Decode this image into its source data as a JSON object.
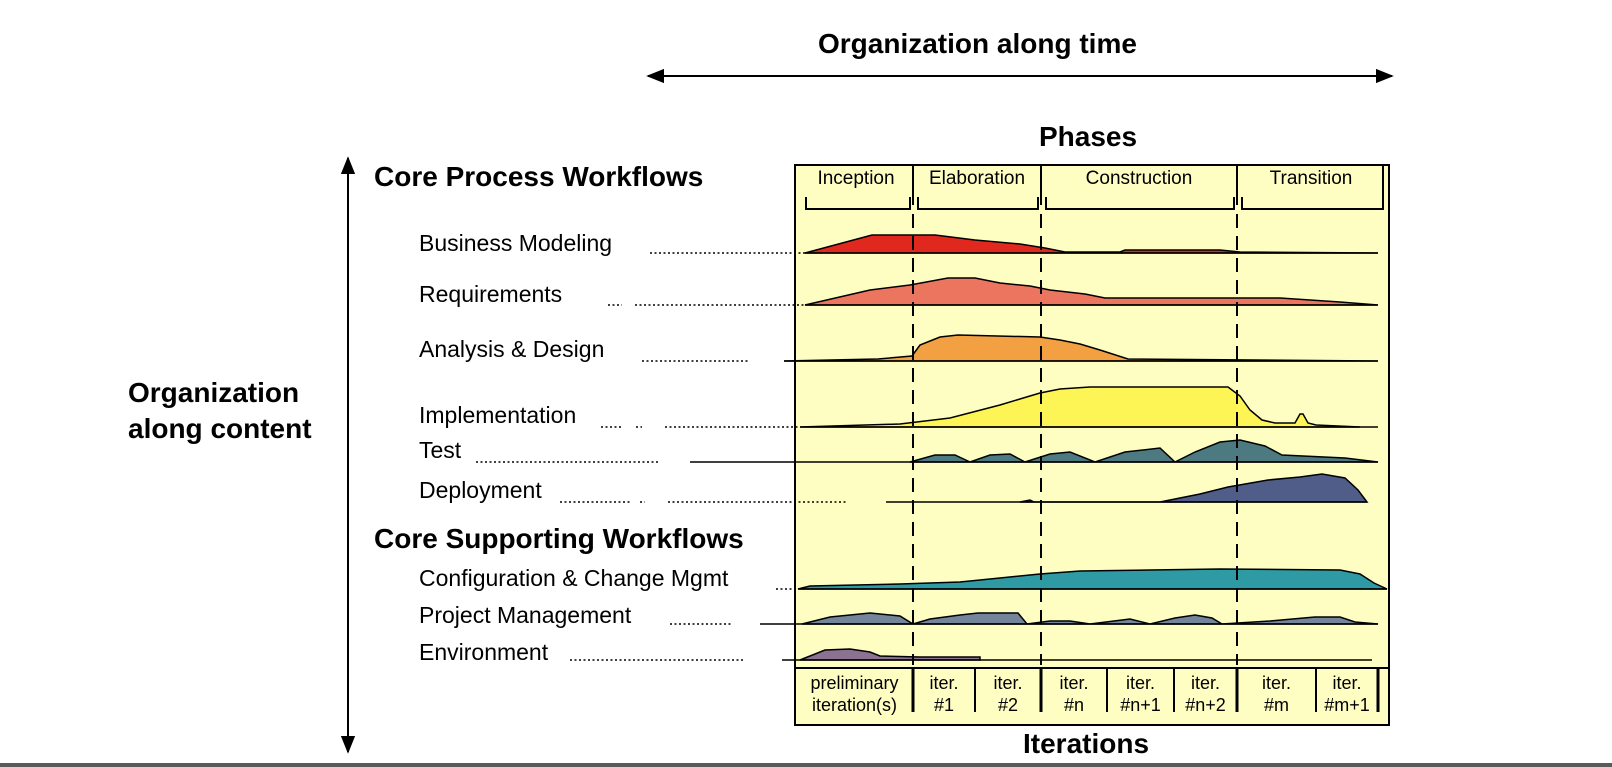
{
  "title_time": "Organization along time",
  "title_content": "Organization along content",
  "title_content_lines": [
    "Organization",
    "along content"
  ],
  "phases_title": "Phases",
  "iterations_title": "Iterations",
  "core_process_title": "Core Process Workflows",
  "core_supporting_title": "Core Supporting Workflows",
  "phases": [
    "Inception",
    "Elaboration",
    "Construction",
    "Transition"
  ],
  "workflows": [
    {
      "name": "Business Modeling",
      "color": "#e0281e"
    },
    {
      "name": "Requirements",
      "color": "#ec7560"
    },
    {
      "name": "Analysis & Design",
      "color": "#f2a042"
    },
    {
      "name": "Implementation",
      "color": "#fdf455"
    },
    {
      "name": "Test",
      "color": "#4c7a80"
    },
    {
      "name": "Deployment",
      "color": "#505d88"
    },
    {
      "name": "Configuration & Change Mgmt",
      "color": "#2e9aa4"
    },
    {
      "name": "Project Management",
      "color": "#74849a"
    },
    {
      "name": "Environment",
      "color": "#8a7290"
    }
  ],
  "iterations": [
    [
      "preliminary",
      "iteration(s)"
    ],
    [
      "iter.",
      "#1"
    ],
    [
      "iter.",
      "#2"
    ],
    [
      "iter.",
      "#n"
    ],
    [
      "iter.",
      "#n+1"
    ],
    [
      "iter.",
      "#n+2"
    ],
    [
      "iter.",
      "#m"
    ],
    [
      "iter.",
      "#m+1"
    ]
  ],
  "colors": {
    "chart_background": "#fefdc2",
    "line": "#000000"
  }
}
